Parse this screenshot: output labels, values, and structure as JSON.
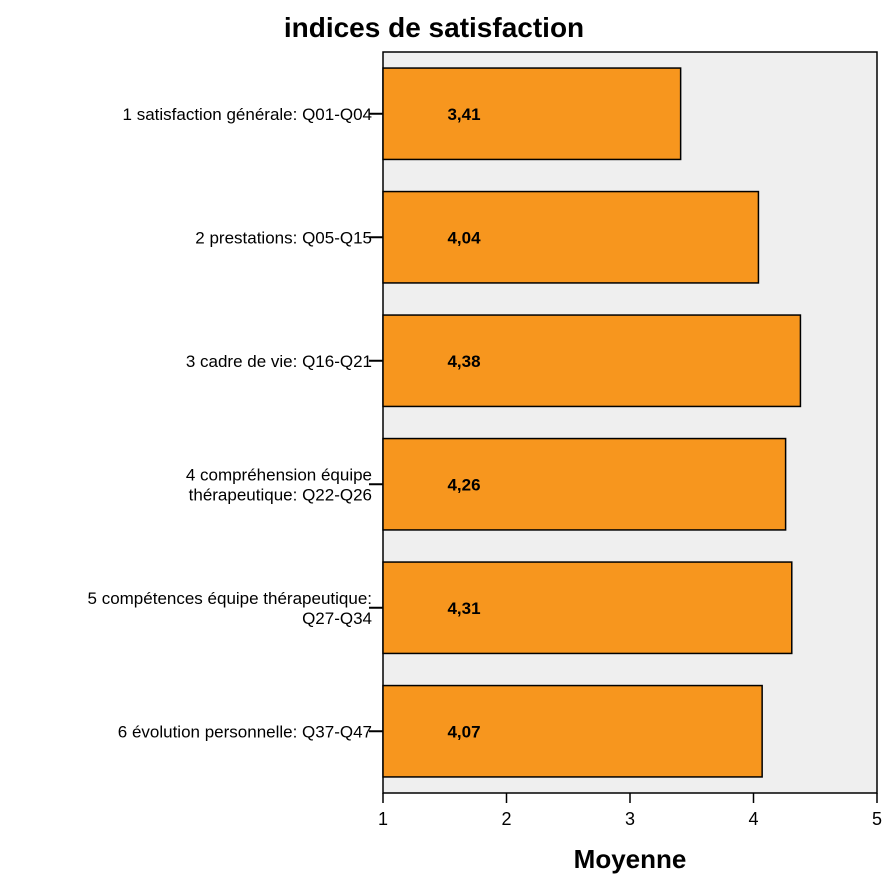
{
  "chart_data": {
    "type": "bar",
    "orientation": "horizontal",
    "title": "indices de satisfaction",
    "xlabel": "Moyenne",
    "ylabel": "",
    "xlim": [
      1,
      5
    ],
    "xticks": [
      "1",
      "2",
      "3",
      "4",
      "5"
    ],
    "categories": [
      [
        "1 satisfaction générale: Q01-Q04"
      ],
      [
        "2 prestations: Q05-Q15"
      ],
      [
        "3 cadre de vie: Q16-Q21"
      ],
      [
        "4 compréhension équipe",
        "thérapeutique: Q22-Q26"
      ],
      [
        "5 compétences équipe thérapeutique:",
        "Q27-Q34"
      ],
      [
        "6 évolution personnelle: Q37-Q47"
      ]
    ],
    "values": [
      3.41,
      4.04,
      4.38,
      4.26,
      4.31,
      4.07
    ],
    "value_labels": [
      "3,41",
      "4,04",
      "4,38",
      "4,26",
      "4,31",
      "4,07"
    ],
    "bar_color": "#f7961e",
    "bar_edge_color": "#000000",
    "plot_background": "#efefef",
    "grid": false,
    "legend": "none"
  }
}
